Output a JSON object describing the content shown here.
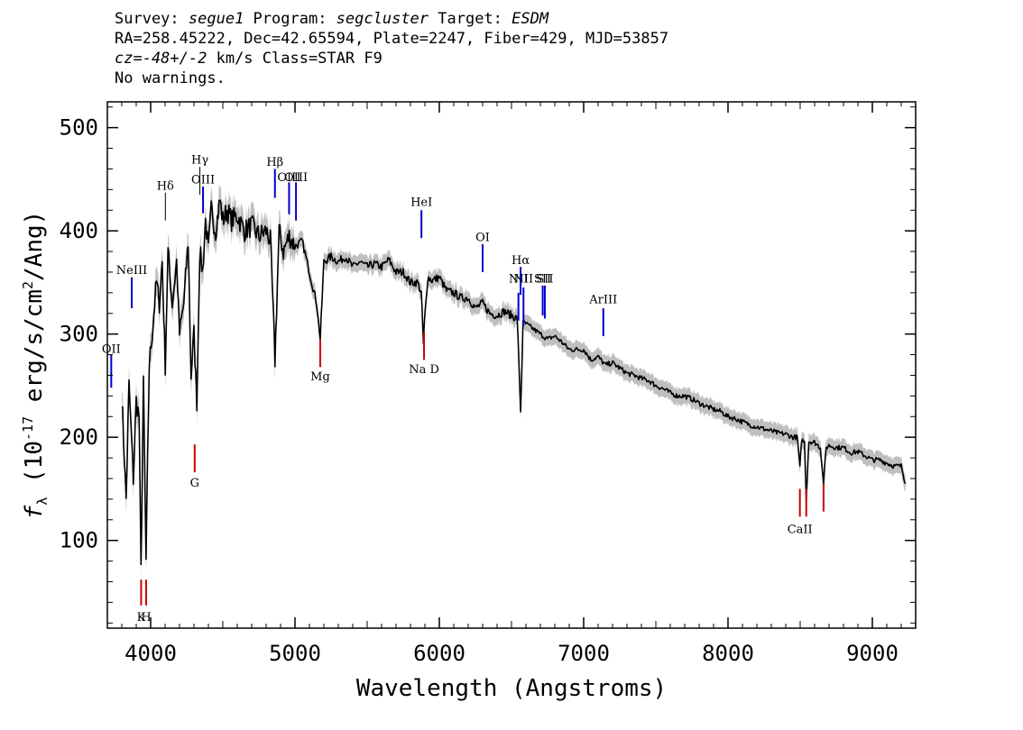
{
  "header": {
    "line1": {
      "survey_label": "Survey: ",
      "survey": "segue1",
      "program_label": " Program: ",
      "program": "segcluster",
      "target_label": " Target: ",
      "target": "ESDM"
    },
    "line2": "RA=258.45222, Dec=42.65594, Plate=2247, Fiber=429, MJD=53857",
    "line3": {
      "cz": "cz=-48+/-2",
      "rest": " km/s Class=STAR F9"
    },
    "line4": "No warnings."
  },
  "chart_data": {
    "type": "line",
    "title": "",
    "xlabel": "Wavelength (Angstroms)",
    "ylabel": "f_λ (10^-17 erg/s/cm^2/Ang)",
    "xlim": [
      3700,
      9300
    ],
    "ylim": [
      15,
      525
    ],
    "xticks": [
      4000,
      5000,
      6000,
      7000,
      8000,
      9000
    ],
    "yticks": [
      100,
      200,
      300,
      400,
      500
    ],
    "grid": false,
    "colors": {
      "flux": "#000000",
      "error_band": "#bfbfbf",
      "emission_lines": "#0000cc",
      "absorption_lines": "#cc0000"
    },
    "series": [
      {
        "x": [
          3800,
          3830,
          3850,
          3880,
          3900,
          3920,
          3933,
          3950,
          3968,
          3990,
          4010,
          4040,
          4060,
          4080,
          4101,
          4120,
          4150,
          4180,
          4200,
          4230,
          4260,
          4280,
          4300,
          4320,
          4340,
          4360,
          4380,
          4400,
          4420,
          4450,
          4480,
          4500,
          4530,
          4560,
          4600,
          4650,
          4700,
          4750,
          4800,
          4830,
          4861,
          4890,
          4920,
          4960,
          5000,
          5050,
          5100,
          5150,
          5175,
          5200,
          5250,
          5300,
          5350,
          5400,
          5450,
          5500,
          5550,
          5600,
          5650,
          5700,
          5750,
          5800,
          5850,
          5875,
          5890,
          5896,
          5920,
          5950,
          6000,
          6050,
          6100,
          6150,
          6200,
          6250,
          6300,
          6350,
          6400,
          6450,
          6500,
          6540,
          6563,
          6580,
          6600,
          6650,
          6700,
          6750,
          6800,
          6850,
          6900,
          6950,
          7000,
          7050,
          7100,
          7150,
          7200,
          7250,
          7300,
          7350,
          7400,
          7450,
          7500,
          7550,
          7600,
          7650,
          7700,
          7750,
          7800,
          7850,
          7900,
          7950,
          8000,
          8050,
          8100,
          8150,
          8200,
          8250,
          8300,
          8350,
          8400,
          8450,
          8480,
          8498,
          8510,
          8530,
          8542,
          8560,
          8600,
          8640,
          8662,
          8680,
          8700,
          8750,
          8800,
          8850,
          8900,
          8950,
          9000,
          9050,
          9100,
          9150,
          9200,
          9230
        ],
        "y": [
          240,
          140,
          250,
          160,
          235,
          220,
          70,
          250,
          80,
          270,
          300,
          350,
          330,
          370,
          270,
          380,
          330,
          370,
          300,
          330,
          390,
          260,
          300,
          235,
          380,
          360,
          410,
          380,
          420,
          400,
          430,
          410,
          420,
          410,
          415,
          400,
          405,
          395,
          400,
          390,
          275,
          400,
          380,
          395,
          385,
          390,
          360,
          330,
          295,
          370,
          375,
          370,
          375,
          365,
          370,
          365,
          368,
          365,
          372,
          360,
          360,
          350,
          350,
          340,
          290,
          310,
          355,
          352,
          355,
          342,
          340,
          335,
          335,
          325,
          330,
          320,
          318,
          322,
          318,
          315,
          225,
          310,
          310,
          305,
          300,
          295,
          298,
          292,
          285,
          285,
          285,
          275,
          278,
          270,
          272,
          267,
          262,
          260,
          257,
          255,
          250,
          247,
          243,
          240,
          240,
          237,
          233,
          230,
          227,
          225,
          220,
          218,
          215,
          212,
          210,
          208,
          206,
          204,
          203,
          200,
          200,
          170,
          198,
          195,
          140,
          196,
          195,
          190,
          155,
          190,
          192,
          190,
          190,
          185,
          186,
          182,
          178,
          178,
          175,
          172,
          172,
          155
        ]
      }
    ],
    "line_labels": [
      {
        "label": "OII",
        "wavelength": 3727,
        "kind": "emission",
        "y_text": 282,
        "y_tick": [
          280,
          248
        ]
      },
      {
        "label": "NeIII",
        "wavelength": 3869,
        "kind": "emission",
        "y_text": 358,
        "y_tick": [
          355,
          325
        ]
      },
      {
        "label": "Hδ",
        "wavelength": 4102,
        "kind": "balmer",
        "y_text": 440,
        "y_tick": [
          437,
          410
        ]
      },
      {
        "label": "Hγ",
        "wavelength": 4341,
        "kind": "balmer",
        "y_text": 465,
        "y_tick": [
          462,
          435
        ]
      },
      {
        "label": "OIII",
        "wavelength": 4363,
        "kind": "emission",
        "y_text": 446,
        "y_tick": [
          443,
          417
        ]
      },
      {
        "label": "Hβ",
        "wavelength": 4861,
        "kind": "emission",
        "y_text": 463,
        "y_tick": [
          460,
          432
        ]
      },
      {
        "label": "OIII",
        "wavelength": 4959,
        "kind": "emission",
        "y_text": 448,
        "y_tick": [
          447,
          416
        ]
      },
      {
        "label": "OIII",
        "wavelength": 5007,
        "kind": "emission",
        "y_text": 448,
        "y_tick": [
          447,
          410
        ]
      },
      {
        "label": "HeI",
        "wavelength": 5876,
        "kind": "emission",
        "y_text": 424,
        "y_tick": [
          420,
          393
        ]
      },
      {
        "label": "OI",
        "wavelength": 6300,
        "kind": "emission",
        "y_text": 390,
        "y_tick": [
          387,
          360
        ]
      },
      {
        "label": "NII",
        "wavelength": 6548,
        "kind": "emission",
        "y_text": 350,
        "y_tick": [
          340,
          313
        ]
      },
      {
        "label": "Hα",
        "wavelength": 6563,
        "kind": "emission",
        "y_text": 368,
        "y_tick": [
          365,
          338
        ]
      },
      {
        "label": "NII",
        "wavelength": 6583,
        "kind": "emission",
        "y_text": 350,
        "y_tick": [
          345,
          308
        ]
      },
      {
        "label": "SII",
        "wavelength": 6716,
        "kind": "emission",
        "y_text": 350,
        "y_tick": [
          347,
          318
        ]
      },
      {
        "label": "SII",
        "wavelength": 6731,
        "kind": "emission",
        "y_text": 350,
        "y_tick": [
          347,
          315
        ]
      },
      {
        "label": "ArIII",
        "wavelength": 7136,
        "kind": "emission",
        "y_text": 330,
        "y_tick": [
          325,
          298
        ]
      },
      {
        "label": "K",
        "wavelength": 3934,
        "kind": "absorption",
        "y_text": 22,
        "y_tick": [
          37,
          62
        ]
      },
      {
        "label": "H",
        "wavelength": 3969,
        "kind": "absorption",
        "y_text": 22,
        "y_tick": [
          37,
          62
        ]
      },
      {
        "label": "G",
        "wavelength": 4305,
        "kind": "absorption",
        "y_text": 152,
        "y_tick": [
          166,
          193
        ]
      },
      {
        "label": "Mg",
        "wavelength": 5175,
        "kind": "absorption",
        "y_text": 255,
        "y_tick": [
          268,
          295
        ]
      },
      {
        "label": "Na D",
        "wavelength": 5894,
        "kind": "absorption",
        "y_text": 262,
        "y_tick": [
          275,
          302
        ]
      },
      {
        "label": "CaII",
        "wavelength": 8498,
        "kind": "absorption",
        "y_text": 107,
        "y_tick": [
          123,
          150
        ]
      },
      {
        "label": "",
        "wavelength": 8542,
        "kind": "absorption",
        "y_text": 107,
        "y_tick": [
          123,
          150
        ]
      },
      {
        "label": "",
        "wavelength": 8662,
        "kind": "absorption",
        "y_text": 107,
        "y_tick": [
          128,
          155
        ]
      }
    ]
  }
}
